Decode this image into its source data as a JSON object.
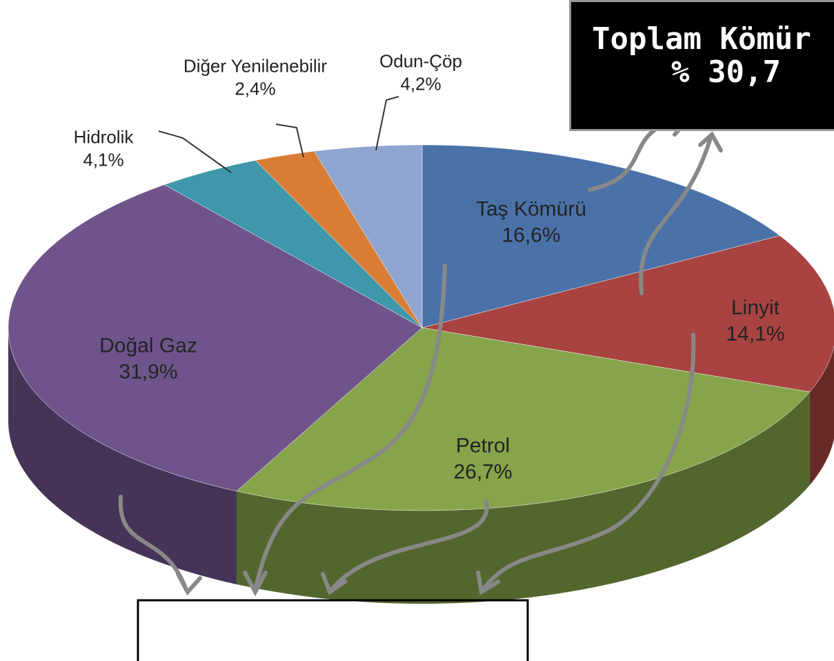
{
  "chart_data": {
    "type": "pie3d",
    "categories": [
      "Taş Kömürü",
      "Linyit",
      "Petrol",
      "Doğal Gaz",
      "Hidrolik",
      "Diğer Yenilenebilir",
      "Odun-Çöp"
    ],
    "values": [
      16.6,
      14.1,
      26.7,
      31.9,
      4.1,
      2.4,
      4.2
    ],
    "value_labels": [
      "16,6%",
      "14,1%",
      "26,7%",
      "31,9%",
      "4,1%",
      "2,4%",
      "4,2%"
    ],
    "colors": [
      "#4a72a8",
      "#a84341",
      "#86a44a",
      "#6f548c",
      "#3e97ab",
      "#d97d36",
      "#8ea5cf"
    ],
    "annotations": [
      "Toplam Kömür",
      "% 30,7"
    ]
  }
}
